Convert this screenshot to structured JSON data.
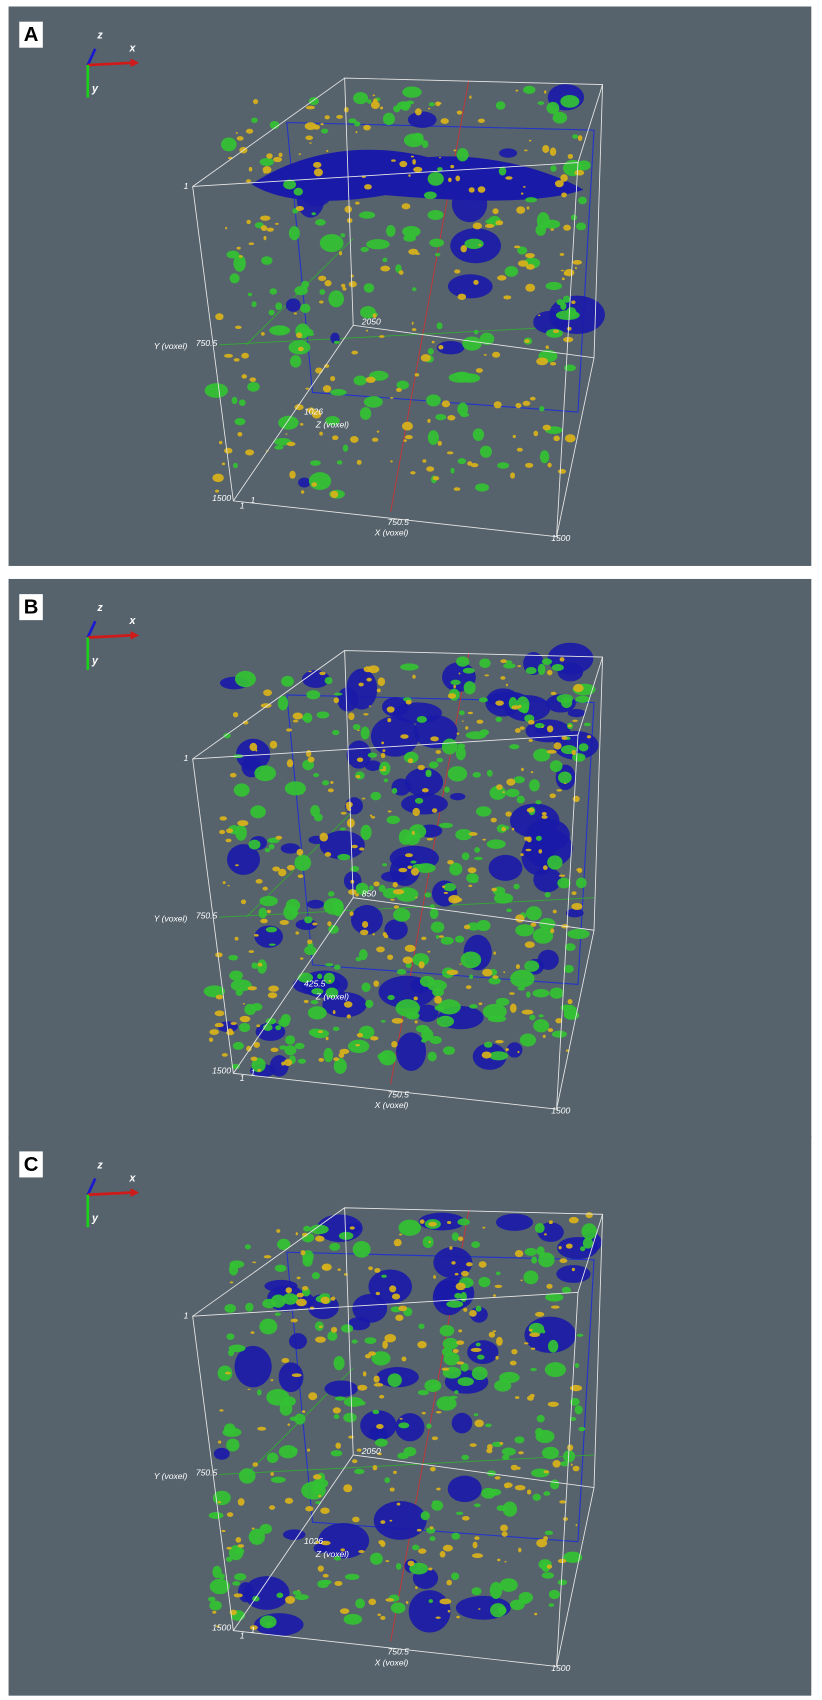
{
  "panels": [
    {
      "label": "A",
      "axes": {
        "z": "z",
        "x": "x",
        "y": "y"
      },
      "y_origin": 1,
      "y_axis_label": "Y (voxel)",
      "y_mid": 750.5,
      "z_far": 2050,
      "z_mid": 1026,
      "z_axis_label": "Z (voxel)",
      "y_max": 1500,
      "z_min": 1,
      "x_min": 1,
      "x_mid": 750.5,
      "x_axis_label": "X (voxel)",
      "x_max": 1500
    },
    {
      "label": "B",
      "axes": {
        "z": "z",
        "x": "x",
        "y": "y"
      },
      "y_origin": 1,
      "y_axis_label": "Y (voxel)",
      "y_mid": 750.5,
      "z_far": 850,
      "z_mid": 425.5,
      "z_axis_label": "Z (voxel)",
      "y_max": 1500,
      "z_min": 1,
      "x_min": 1,
      "x_mid": 750.5,
      "x_axis_label": "X (voxel)",
      "x_max": 1500
    },
    {
      "label": "C",
      "axes": {
        "z": "z",
        "x": "x",
        "y": "y"
      },
      "y_origin": 1,
      "y_axis_label": "Y (voxel)",
      "y_mid": 750.5,
      "z_far": 2050,
      "z_mid": 1026,
      "z_axis_label": "Z (voxel)",
      "y_max": 1500,
      "z_min": 1,
      "x_min": 1,
      "x_mid": 750.5,
      "x_axis_label": "X (voxel)",
      "x_max": 1500
    }
  ]
}
